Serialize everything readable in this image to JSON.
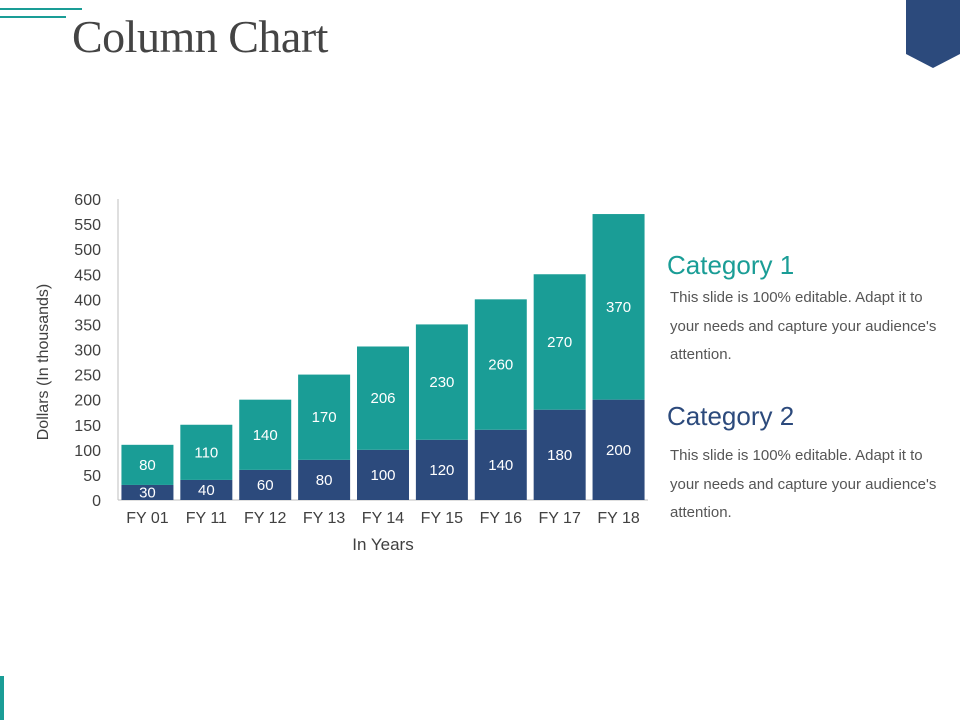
{
  "slide": {
    "title": "Column Chart"
  },
  "colors": {
    "teal": "#1a9d96",
    "navy": "#2c4a7c",
    "axis_text": "#404040",
    "body_text": "#555555"
  },
  "chart_data": {
    "type": "bar",
    "stacked": true,
    "categories": [
      "FY 01",
      "FY 11",
      "FY 12",
      "FY 13",
      "FY 14",
      "FY 15",
      "FY 16",
      "FY 17",
      "FY 18"
    ],
    "series": [
      {
        "name": "Category 2",
        "color": "#2c4a7c",
        "values": [
          30,
          40,
          60,
          80,
          100,
          120,
          140,
          180,
          200
        ]
      },
      {
        "name": "Category 1",
        "color": "#1a9d96",
        "values": [
          80,
          110,
          140,
          170,
          206,
          230,
          260,
          270,
          370
        ]
      }
    ],
    "xlabel": "In Years",
    "ylabel": "Dollars (In thousands)",
    "ylim": [
      0,
      600
    ],
    "yticks": [
      0,
      50,
      100,
      150,
      200,
      250,
      300,
      350,
      400,
      450,
      500,
      550,
      600
    ],
    "grid": false,
    "legend": "right"
  },
  "legend_panel": [
    {
      "heading": "Category 1",
      "color": "#1a9d96",
      "text": "This slide is 100% editable. Adapt it to your needs and capture your audience's attention."
    },
    {
      "heading": "Category 2",
      "color": "#2c4a7c",
      "text": "This slide is 100% editable. Adapt it to your needs and capture your audience's attention."
    }
  ]
}
